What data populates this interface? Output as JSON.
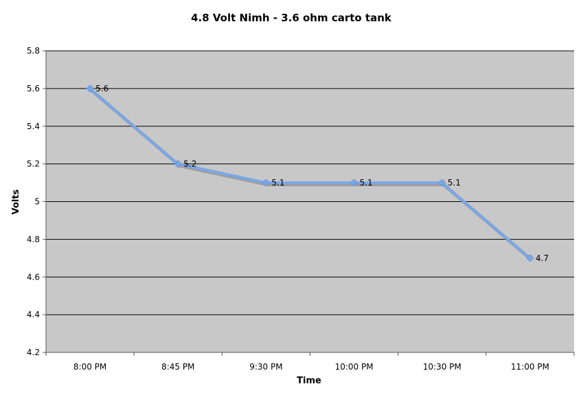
{
  "chart_data": {
    "type": "line",
    "title": "4.8 Volt Nimh - 3.6 ohm carto tank",
    "xlabel": "Time",
    "ylabel": "Volts",
    "categories": [
      "8:00 PM",
      "8:45 PM",
      "9:30 PM",
      "10:00 PM",
      "10:30 PM",
      "11:00 PM"
    ],
    "series": [
      {
        "values": [
          5.6,
          5.2,
          5.1,
          5.1,
          5.1,
          4.7
        ]
      }
    ],
    "data_labels": [
      "5.6",
      "5.2",
      "5.1",
      "5.1",
      "5.1",
      "4.7"
    ],
    "ylim": [
      4.2,
      5.8
    ],
    "yticks": [
      4.2,
      4.4,
      4.6,
      4.8,
      5.0,
      5.2,
      5.4,
      5.6,
      5.8
    ],
    "ytick_labels": [
      "4.2",
      "4.4",
      "4.6",
      "4.8",
      "5",
      "5.2",
      "5.4",
      "5.6",
      "5.8"
    ],
    "grid": true,
    "legend": "none",
    "colors": {
      "plot_background": "#c8c8c8",
      "line": "#7aa7e8",
      "shadow": "#8a8a8a",
      "grid": "#000000"
    }
  }
}
